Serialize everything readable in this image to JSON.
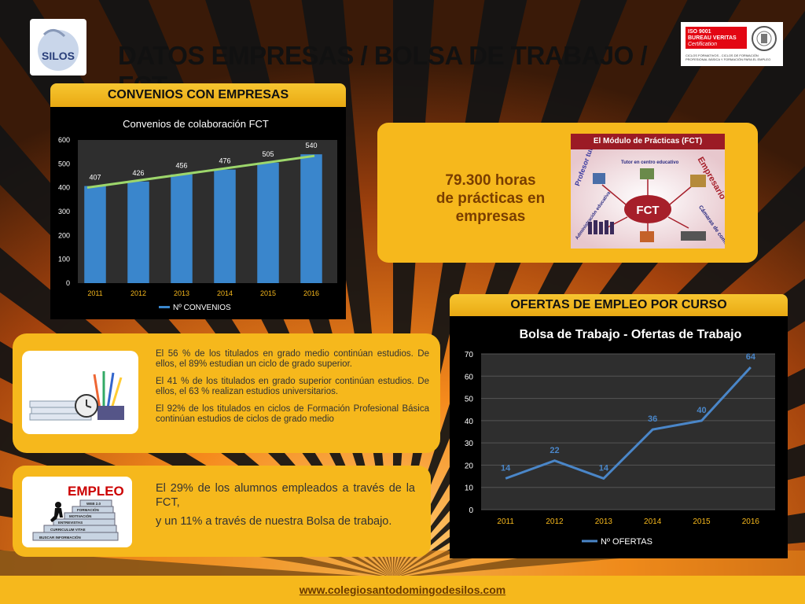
{
  "header": {
    "title": "DATOS EMPRESAS / BOLSA DE TRABAJO / FCT",
    "logo_text": "SILOS",
    "cert": {
      "line1": "ISO 9001",
      "line2": "BUREAU VERITAS",
      "line3": "Certification",
      "small": "CICLOS FORMATIVOS - CICLOS DE FORMACIÓN PROFESIONAL BÁSICA Y FORMACIÓN PARA EL EMPLEO"
    }
  },
  "convenios": {
    "banner": "CONVENIOS CON EMPRESAS"
  },
  "fct_box": {
    "hours_line1": "79.300 horas",
    "hours_line2": "de prácticas en",
    "hours_line3": "empresas",
    "diagram": {
      "title": "El Módulo de Prácticas (FCT)",
      "center": "FCT",
      "labels": [
        "Profesor tutor",
        "Tutor en centro educativo",
        "Empresario",
        "Administración educativa",
        "Cámaras de comercio"
      ]
    }
  },
  "ofertas": {
    "banner": "OFERTAS  DE  EMPLEO POR CURSO"
  },
  "stats_box": {
    "p1": "El 56 % de los titulados en grado medio continúan estudios. De ellos, el 89% estudian un ciclo de grado superior.",
    "p2": "El 41 % de los titulados en grado superior continúan estudios. De ellos, el 63 % realizan estudios universitarios.",
    "p3": "El 92% de los titulados en ciclos de Formación Profesional Básica continúan estudios de ciclos de grado medio"
  },
  "empleo_box": {
    "image_title": "EMPLEO",
    "steps": [
      "WEB 2.0",
      "FORMACIÓN",
      "MOTIVACIÓN",
      "ENTREVISTAS",
      "CURRICULUM VITAE",
      "BUSCAR INFORMACIÓN"
    ],
    "line1": "El 29% de los alumnos empleados a través de la FCT,",
    "line2": "y un 11% a través de nuestra Bolsa de trabajo."
  },
  "footer": {
    "url": "www.colegiosantodomingodesilos.com"
  },
  "colors": {
    "accent": "#f6b81c",
    "bar": "#3a86cc",
    "line": "#4a86c8",
    "trend": "#9dd66b"
  },
  "chart_data": [
    {
      "type": "bar",
      "title": "Convenios de colaboración FCT",
      "categories": [
        "2011",
        "2012",
        "2013",
        "2014",
        "2015",
        "2016"
      ],
      "series": [
        {
          "name": "Nº CONVENIOS",
          "values": [
            407,
            426,
            456,
            476,
            505,
            540
          ]
        }
      ],
      "ylim": [
        0,
        600
      ],
      "yticks": [
        "0",
        "100",
        "200",
        "300",
        "400",
        "500",
        "600"
      ],
      "trendline": true,
      "grid": false,
      "legend": "bottom"
    },
    {
      "type": "line",
      "title": "Bolsa de Trabajo - Ofertas de Trabajo",
      "categories": [
        "2011",
        "2012",
        "2013",
        "2014",
        "2015",
        "2016"
      ],
      "series": [
        {
          "name": "Nº OFERTAS",
          "values": [
            14,
            22,
            14,
            36,
            40,
            64
          ]
        }
      ],
      "ylim": [
        0,
        70
      ],
      "yticks": [
        "0",
        "10",
        "20",
        "30",
        "40",
        "50",
        "60",
        "70"
      ],
      "grid": true,
      "legend": "bottom"
    }
  ]
}
